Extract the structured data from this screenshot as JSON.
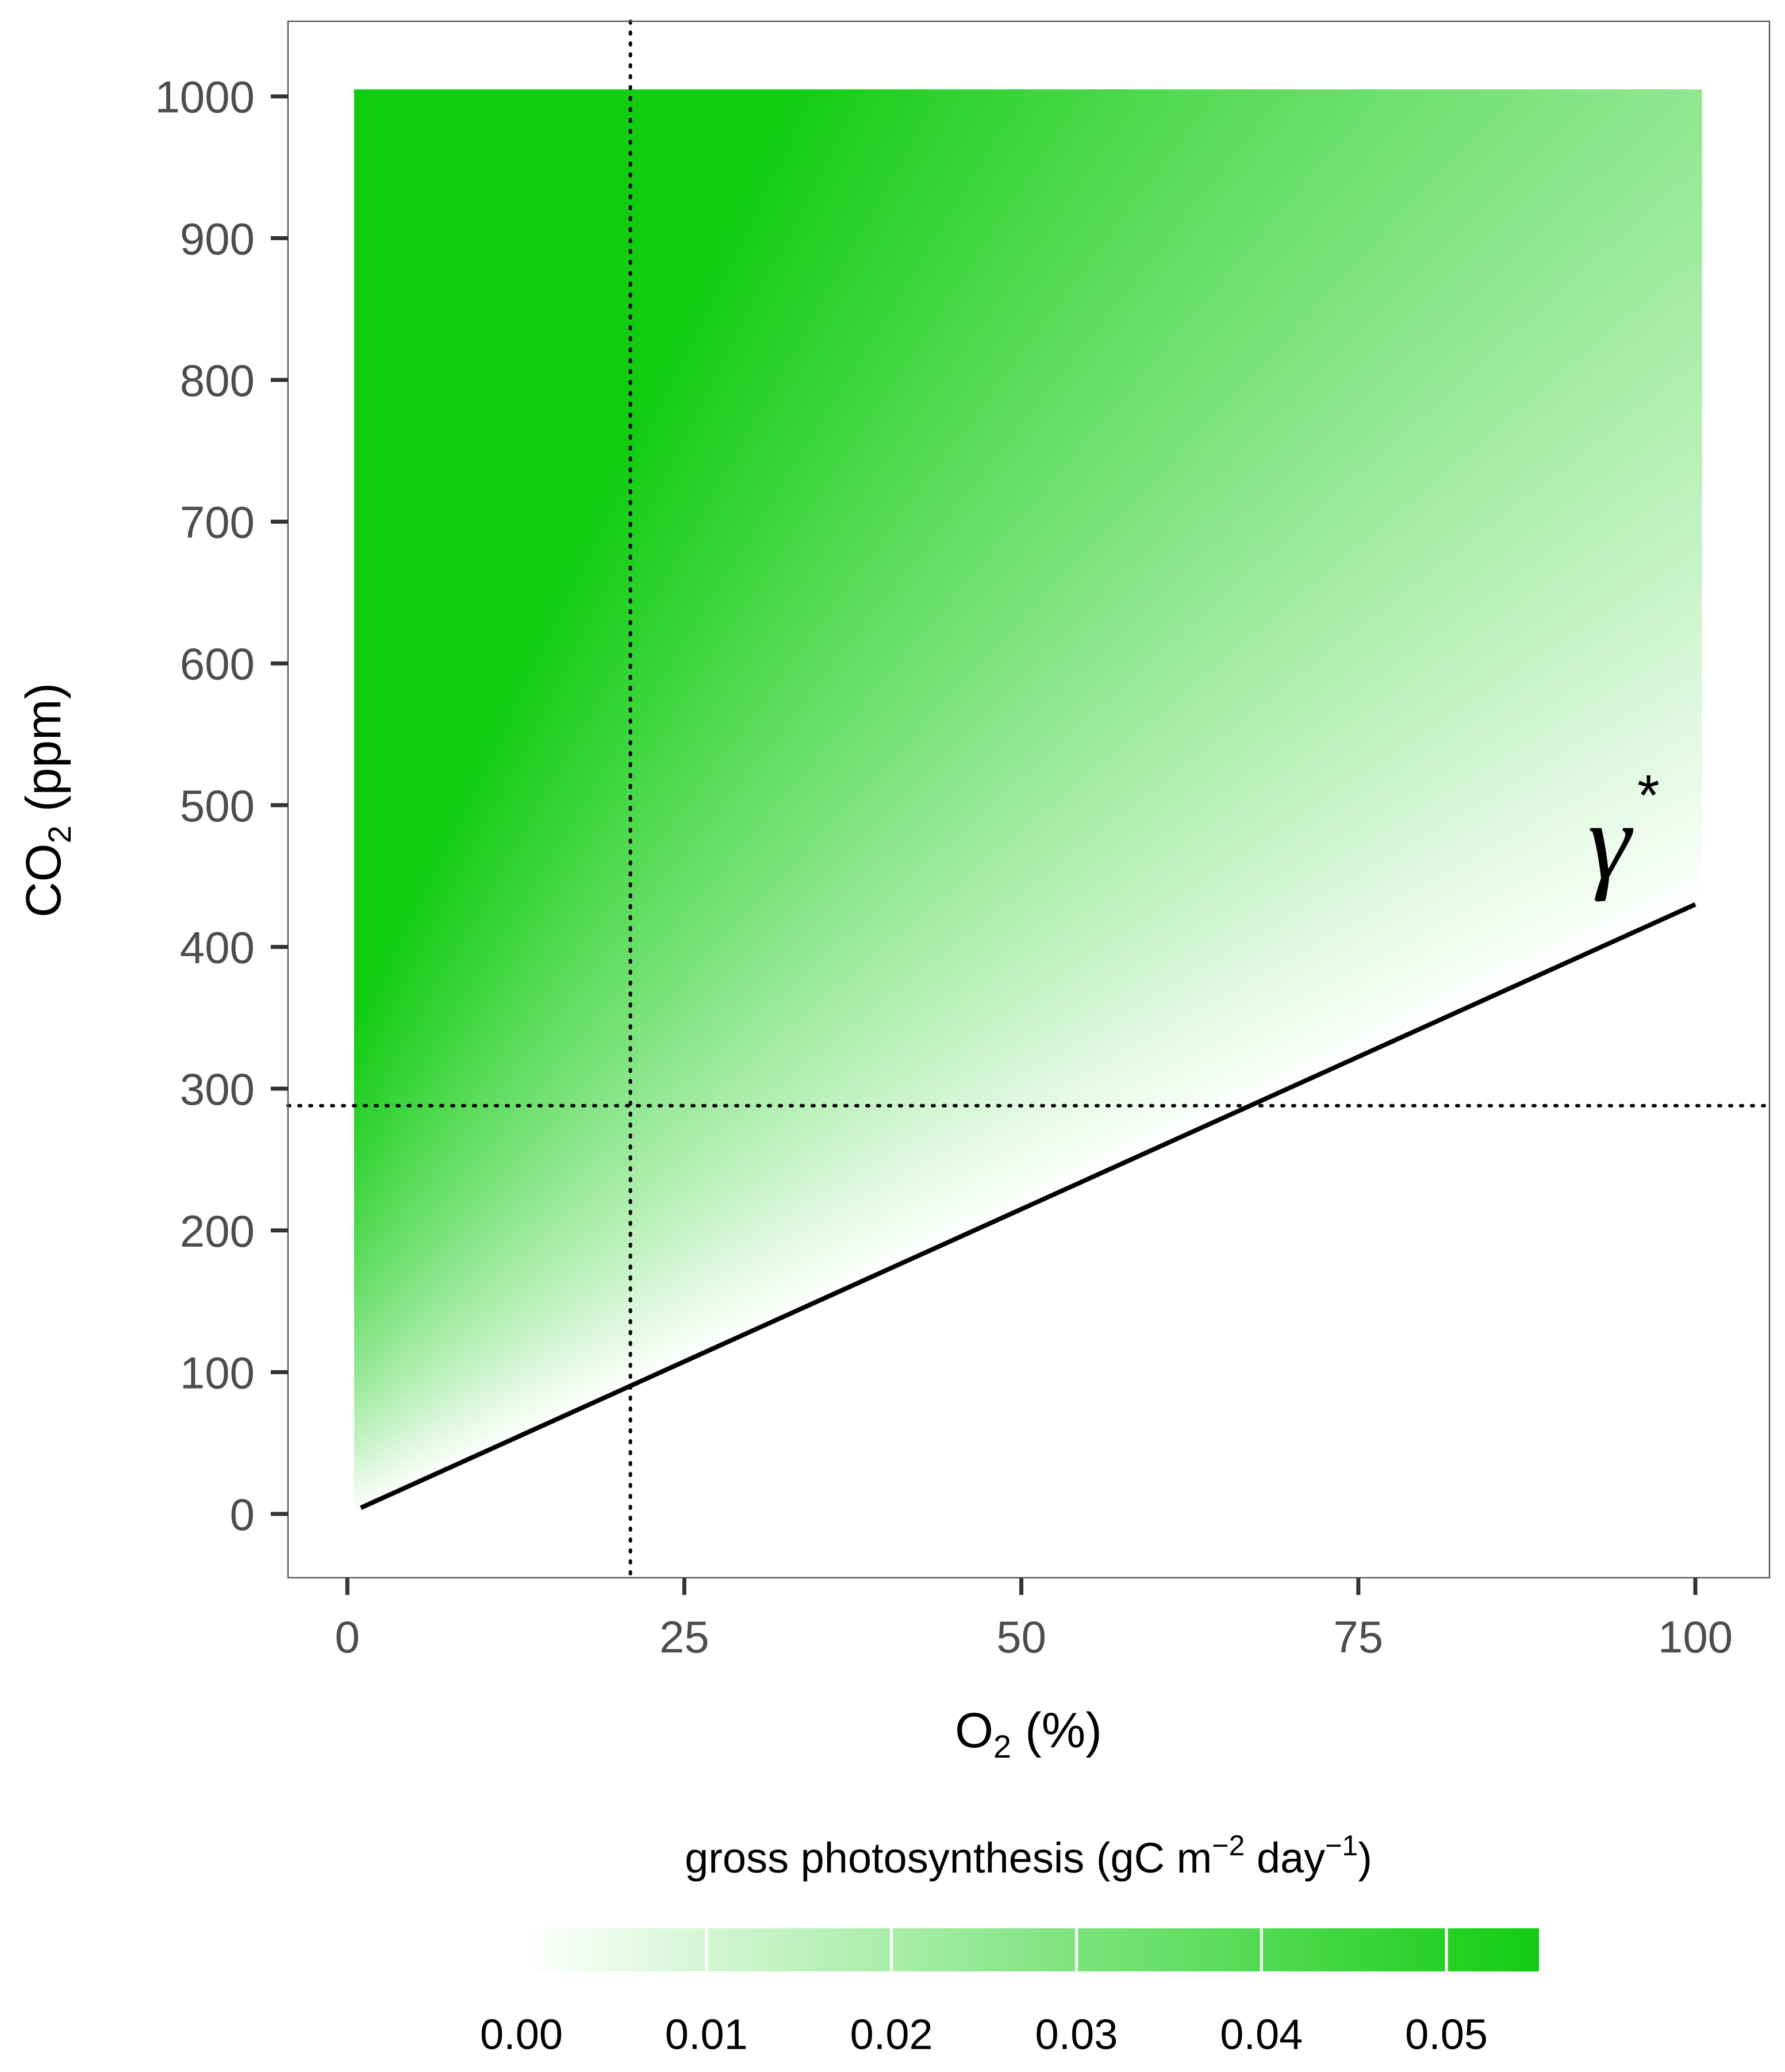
{
  "chart_data": {
    "type": "heatmap",
    "title": "",
    "xlabel": "O",
    "xlabel_sub": "2",
    "xlabel_tail": " (%)",
    "ylabel": "CO",
    "ylabel_sub": "2",
    "ylabel_tail": " (ppm)",
    "x_ticks": [
      "0",
      "25",
      "50",
      "75",
      "100"
    ],
    "x_tick_values": [
      0,
      25,
      50,
      75,
      100
    ],
    "y_ticks": [
      "0",
      "100",
      "200",
      "300",
      "400",
      "500",
      "600",
      "700",
      "800",
      "900",
      "1000"
    ],
    "y_tick_values": [
      0,
      100,
      200,
      300,
      400,
      500,
      600,
      700,
      800,
      900,
      1000
    ],
    "xlim": [
      -4.4,
      105.5
    ],
    "ylim": [
      -45,
      1053
    ],
    "heat_extent": {
      "x": [
        0.5,
        100.5
      ],
      "y": [
        0,
        1005
      ]
    },
    "colorscale": {
      "low": "#ffffff",
      "high": "#11cc11",
      "min": 0,
      "max": 0.055
    },
    "compensation_line": {
      "x": [
        1,
        100
      ],
      "y": [
        4.3,
        430
      ],
      "label": "γ",
      "label_sup": "*",
      "color": "#000000"
    },
    "reference_lines": {
      "vertical_x": 21,
      "horizontal_y": 288
    },
    "legend": {
      "title": "gross photosynthesis (gC m",
      "title_sup1": "−2",
      "title_mid": " day",
      "title_sup2": "−1",
      "title_end": ")",
      "ticks": [
        "0.00",
        "0.01",
        "0.02",
        "0.03",
        "0.04",
        "0.05"
      ],
      "tick_values": [
        0,
        0.01,
        0.02,
        0.03,
        0.04,
        0.05
      ],
      "placement": "bottom"
    },
    "grid": false
  }
}
